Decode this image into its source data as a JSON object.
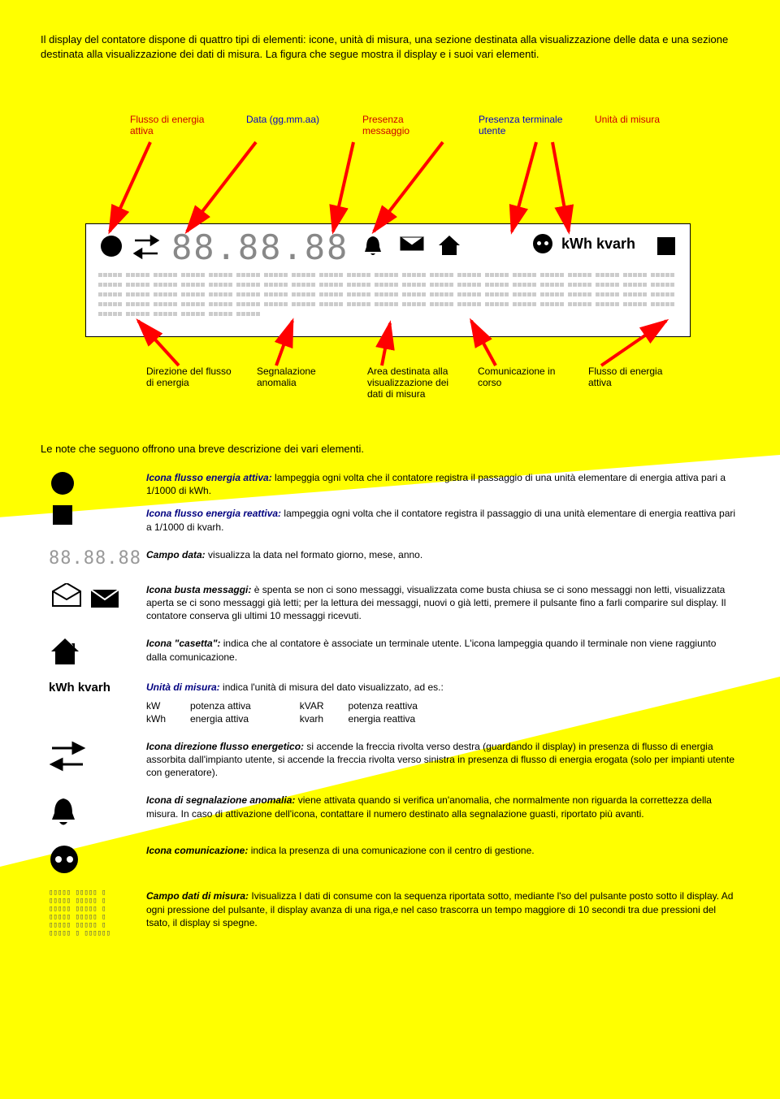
{
  "intro": "Il display del contatore dispone di quattro tipi di elementi: icone, unità di misura, una sezione destinata alla visualizzazione delle data e una sezione destinata alla visualizzazione dei dati di misura. La figura che segue mostra il display e i suoi vari elementi.",
  "top_labels": {
    "flusso": "Flusso di energia attiva",
    "data": "Data (gg.mm.aa)",
    "presenza_msg": "Presenza messaggio",
    "presenza_term": "Presenza terminale utente",
    "unita": "Unità di misura"
  },
  "lcd": {
    "digits": "88.88.88",
    "units": "kWh kvarh"
  },
  "bottom_labels": {
    "direzione": "Direzione del flusso di energia",
    "segnalazione": "Segnalazione anomalia",
    "area": "Area destinata alla visualizzazione dei dati di misura",
    "comunicazione": "Comunicazione in corso",
    "flusso_r": "Flusso di energia attiva"
  },
  "notes_intro": "Le note che seguono offrono una breve descrizione dei vari elementi.",
  "desc": {
    "attiva_title": "Icona flusso energia attiva:",
    "attiva_body": " lampeggia ogni volta che il contatore registra il passaggio di una unità elementare di energia attiva pari a 1/1000 di kWh.",
    "reattiva_title": "Icona flusso energia reattiva:",
    "reattiva_body": " lampeggia ogni volta che il contatore registra il passaggio di una unità elementare di energia reattiva pari a 1/1000 di kvarh.",
    "data_title": "Campo data:",
    "data_body": " visualizza la data nel formato giorno, mese, anno.",
    "busta_title": "Icona busta messaggi:",
    "busta_body": " è spenta se non ci sono messaggi, visualizzata come busta chiusa se ci sono messaggi non letti, visualizzata aperta se ci sono messaggi già letti; per la lettura dei messaggi, nuovi o già letti, premere il pulsante fino a farli comparire sul display. Il contatore conserva gli ultimi 10 messaggi ricevuti.",
    "casetta_title": "Icona \"casetta\":",
    "casetta_body": " indica che al contatore è associate un terminale utente. L'icona lampeggia quando il terminale non viene raggiunto dalla comunicazione.",
    "unita_title": "Unità di misura:",
    "unita_body": " indica l'unità di misura del dato visualizzato, ad es.:",
    "unit_kw": "kW",
    "unit_kw_d": "potenza attiva",
    "unit_kwh": "kWh",
    "unit_kwh_d": "energia attiva",
    "unit_kvar": "kVAR",
    "unit_kvar_d": "potenza reattiva",
    "unit_kvarh": "kvarh",
    "unit_kvarh_d": "energia reattiva",
    "direzione_title": "Icona direzione flusso energetico:",
    "direzione_body": " si accende la freccia rivolta verso destra (guardando il display) in presenza di flusso di energia assorbita dall'impianto utente, si accende la freccia rivolta verso sinistra in presenza di flusso di energia erogata (solo per impianti utente con generatore).",
    "anomalia_title": "Icona di segnalazione anomalia:",
    "anomalia_body": " viene attivata quando si verifica un'anomalia, che normalmente non riguarda la correttezza della misura. In caso di attivazione dell'icona, contattare il numero destinato alla segnalazione guasti, riportato più avanti.",
    "comm_title": "Icona comunicazione:",
    "comm_body": " indica la presenza di una comunicazione con il centro di gestione.",
    "dati_title": "Campo dati di misura:",
    "dati_body": " Ivisualizza I dati di consume con la sequenza riportata sotto, mediante l'so del pulsante posto sotto il display. Ad ogni pressione del pulsante, il display avanza di una riga,e nel caso trascorra un tempo maggiore di 10 secondi tra due pressioni del tsato, il display si spegne."
  },
  "colors": {
    "bg": "#ffff00",
    "red": "#cc0000",
    "blue": "#0000cc",
    "arrow": "#ff0000"
  }
}
